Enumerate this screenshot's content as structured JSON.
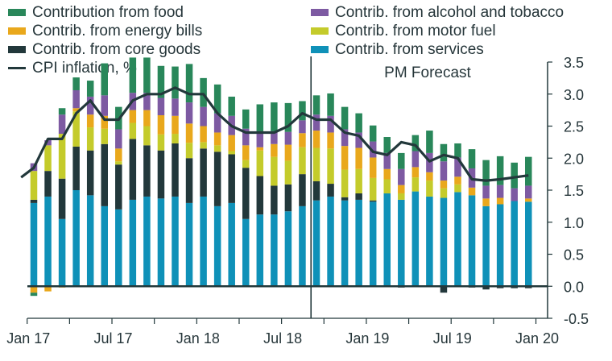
{
  "chart_data": {
    "type": "bar",
    "stacked": true,
    "title": "",
    "xlabel": "",
    "ylabel": "",
    "ylim": [
      -0.5,
      3.5
    ],
    "yticks": [
      "3.5",
      "3.0",
      "2.5",
      "2.0",
      "1.5",
      "1.0",
      "0.5",
      "0.0",
      "-0.5"
    ],
    "ytick_values": [
      3.5,
      3.0,
      2.5,
      2.0,
      1.5,
      1.0,
      0.5,
      0.0,
      -0.5
    ],
    "y_axis_side": "right",
    "xtick_labels": [
      "Jan 17",
      "Jul 17",
      "Jan 18",
      "Jul 18",
      "Jan 19",
      "Jul 19",
      "Jan 20"
    ],
    "xtick_label_months": [
      0,
      6,
      12,
      18,
      24,
      30,
      36
    ],
    "forecast_label": "PM Forecast",
    "forecast_start_month": 19.5,
    "legend_placement": "top",
    "categories": [
      "Jan 17",
      "Feb 17",
      "Mar 17",
      "Apr 17",
      "May 17",
      "Jun 17",
      "Jul 17",
      "Aug 17",
      "Sep 17",
      "Oct 17",
      "Nov 17",
      "Dec 17",
      "Jan 18",
      "Feb 18",
      "Mar 18",
      "Apr 18",
      "May 18",
      "Jun 18",
      "Jul 18",
      "Aug 18",
      "Sep 18",
      "Oct 18",
      "Nov 18",
      "Dec 18",
      "Jan 19",
      "Feb 19",
      "Mar 19",
      "Apr 19",
      "May 19",
      "Jun 19",
      "Jul 19",
      "Aug 19",
      "Sep 19",
      "Oct 19",
      "Nov 19",
      "Dec 19"
    ],
    "series": [
      {
        "name": "Contrib. from services",
        "color": "#0f91b8",
        "values": [
          1.3,
          1.4,
          1.05,
          1.5,
          1.42,
          1.25,
          1.2,
          1.35,
          1.4,
          1.37,
          1.4,
          1.3,
          1.4,
          1.25,
          1.3,
          1.05,
          1.12,
          1.12,
          1.17,
          1.25,
          1.34,
          1.4,
          1.34,
          1.35,
          1.32,
          1.45,
          1.35,
          1.48,
          1.4,
          1.38,
          1.47,
          1.42,
          1.25,
          1.28,
          1.33,
          1.32
        ]
      },
      {
        "name": "Contrib. from core goods",
        "color": "#22383b",
        "values": [
          0.05,
          0.4,
          0.63,
          0.68,
          0.7,
          0.97,
          0.7,
          0.95,
          0.8,
          0.75,
          0.83,
          0.7,
          0.75,
          0.85,
          0.76,
          0.8,
          0.6,
          0.45,
          0.42,
          0.5,
          0.3,
          0.2,
          0.05,
          0.1,
          0.02,
          0.0,
          -0.02,
          0.0,
          0.0,
          -0.1,
          0.0,
          -0.02,
          -0.05,
          -0.03,
          -0.03,
          -0.03
        ]
      },
      {
        "name": "Contrib. from motor fuel",
        "color": "#c4cb2b",
        "values": [
          0.45,
          0.4,
          0.7,
          0.55,
          0.36,
          0.24,
          0.05,
          0.25,
          0.3,
          0.25,
          0.15,
          0.24,
          0.1,
          0.1,
          0.05,
          0.12,
          0.4,
          0.45,
          0.37,
          0.42,
          0.52,
          0.55,
          0.43,
          0.38,
          0.35,
          0.22,
          0.1,
          0.22,
          0.25,
          0.15,
          0.12,
          0.0,
          0.0,
          0.0,
          0.0,
          0.0
        ]
      },
      {
        "name": "Contrib. from energy bills",
        "color": "#e9a81c",
        "values": [
          -0.1,
          -0.08,
          -0.02,
          0.05,
          0.2,
          0.2,
          0.2,
          0.2,
          0.25,
          0.3,
          0.28,
          0.3,
          0.25,
          0.2,
          0.25,
          0.23,
          0.05,
          0.2,
          0.25,
          0.22,
          0.27,
          0.25,
          0.37,
          0.33,
          0.32,
          0.16,
          0.13,
          0.16,
          0.13,
          0.12,
          0.12,
          0.12,
          0.12,
          0.1,
          0.0,
          0.05
        ]
      },
      {
        "name": "Contrib. from alcohol and tobacco",
        "color": "#7d5aa2",
        "values": [
          0.12,
          0.08,
          0.3,
          0.28,
          0.28,
          0.32,
          0.3,
          0.27,
          0.27,
          0.27,
          0.27,
          0.33,
          0.3,
          0.3,
          0.3,
          0.26,
          0.22,
          0.2,
          0.2,
          0.2,
          0.25,
          0.26,
          0.26,
          0.24,
          0.25,
          0.25,
          0.25,
          0.25,
          0.3,
          0.3,
          0.3,
          0.3,
          0.2,
          0.2,
          0.2,
          0.2
        ]
      },
      {
        "name": "Contribution from food",
        "color": "#29875a",
        "values": [
          -0.05,
          0.0,
          0.1,
          0.2,
          0.25,
          0.5,
          0.35,
          0.55,
          0.55,
          0.5,
          0.5,
          0.6,
          0.45,
          0.45,
          0.3,
          0.3,
          0.45,
          0.45,
          0.45,
          0.3,
          0.3,
          0.35,
          0.35,
          0.3,
          0.25,
          0.25,
          0.25,
          0.25,
          0.35,
          0.27,
          0.22,
          0.3,
          0.4,
          0.45,
          0.4,
          0.45
        ]
      }
    ],
    "line_series": {
      "name": "CPI inflation, %",
      "color": "#22383b",
      "x": [
        -0.9,
        0,
        1,
        2,
        3,
        4,
        5,
        6,
        7,
        8,
        9,
        10,
        11,
        12,
        13,
        14,
        15,
        16,
        17,
        18,
        19,
        20,
        21,
        22,
        23,
        24,
        25,
        26,
        27,
        28,
        29,
        30,
        31,
        32,
        33,
        34,
        35
      ],
      "values": [
        1.7,
        1.85,
        2.3,
        2.3,
        2.7,
        2.9,
        2.6,
        2.6,
        2.9,
        3.0,
        3.0,
        3.1,
        3.0,
        3.0,
        2.7,
        2.5,
        2.4,
        2.4,
        2.4,
        2.5,
        2.7,
        2.6,
        2.6,
        2.4,
        2.35,
        2.1,
        2.05,
        2.25,
        2.2,
        1.95,
        2.05,
        2.0,
        1.67,
        1.65,
        1.67,
        1.7,
        1.73
      ]
    }
  },
  "legend": {
    "items": [
      {
        "label": "Contribution from food",
        "color": "#29875a",
        "kind": "bar"
      },
      {
        "label": "Contrib. from energy bills",
        "color": "#e9a81c",
        "kind": "bar"
      },
      {
        "label": "Contrib. from core goods",
        "color": "#22383b",
        "kind": "bar"
      },
      {
        "label": "CPI inflation, %",
        "color": "#22383b",
        "kind": "line"
      },
      {
        "label": "Contrib. from alcohol and tobacco",
        "color": "#7d5aa2",
        "kind": "bar"
      },
      {
        "label": "Contrib. from motor fuel",
        "color": "#c4cb2b",
        "kind": "bar"
      },
      {
        "label": "Contrib. from services",
        "color": "#0f91b8",
        "kind": "bar"
      }
    ]
  }
}
